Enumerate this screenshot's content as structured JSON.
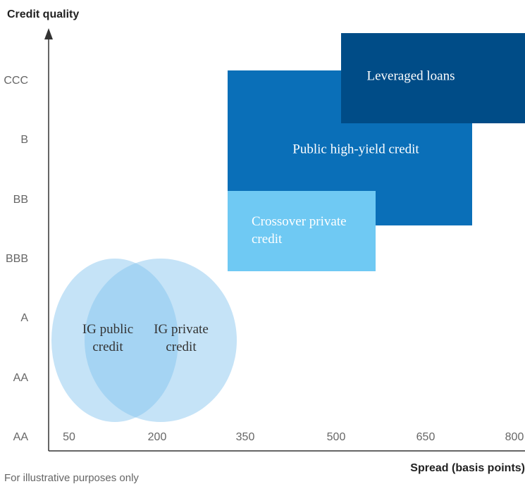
{
  "y_axis": {
    "title": "Credit quality",
    "ticks": [
      "CCC",
      "B",
      "BB",
      "BBB",
      "A",
      "AA",
      "AA"
    ]
  },
  "x_axis": {
    "title": "Spread (basis points)",
    "ticks": [
      "50",
      "200",
      "350",
      "500",
      "650",
      "800"
    ]
  },
  "regions": [
    {
      "label": "Leveraged loans"
    },
    {
      "label": "Public high-yield credit"
    },
    {
      "label": "Crossover private credit"
    },
    {
      "label": "IG public credit"
    },
    {
      "label": "IG private credit"
    }
  ],
  "footnote": "For illustrative purposes only"
}
